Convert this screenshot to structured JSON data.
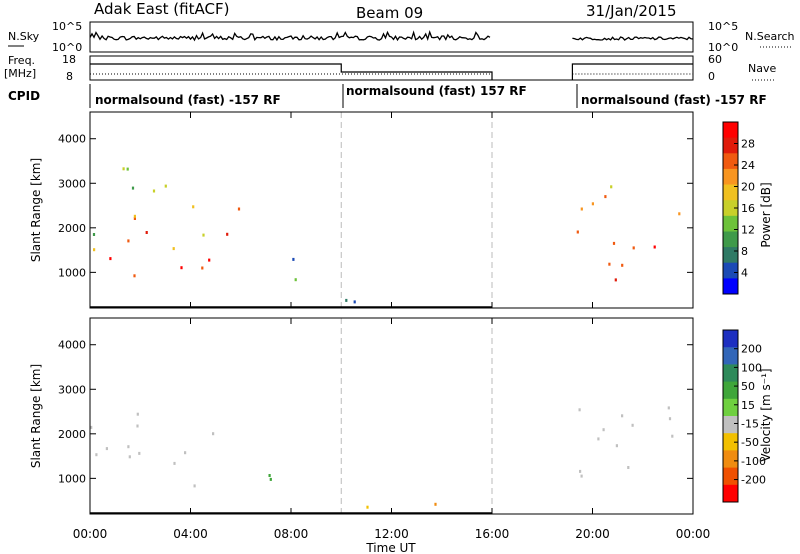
{
  "header": {
    "station": "Adak East (fitACF)",
    "beam": "Beam 09",
    "date": "31/Jan/2015"
  },
  "summary_panels": {
    "nsky_label": "N.Sky",
    "nsky_ticks": [
      "10^5",
      "10^0"
    ],
    "nsearch_label": "N.Search",
    "nsearch_ticks": [
      "10^5",
      "10^0"
    ],
    "freq_label_1": "Freq.",
    "freq_label_2": "[MHz]",
    "freq_ticks": [
      "18",
      "8"
    ],
    "nave_label": "Nave",
    "nave_ticks": [
      "60",
      "0"
    ],
    "cpid_label": "CPID",
    "cpid_segments": [
      {
        "label": "normalsound (fast) -157 RF",
        "start_hour": 0,
        "end_hour": 10
      },
      {
        "label": "normalsound (fast) 157 RF",
        "start_hour": 10,
        "end_hour": 20
      },
      {
        "label": "normalsound (fast) -157 RF",
        "start_hour": 20,
        "end_hour": 24
      }
    ],
    "data_gap_hours": [
      16,
      19.2
    ]
  },
  "chart_data": [
    {
      "type": "heatmap",
      "name": "power",
      "xlabel": "",
      "ylabel": "Slant Range [km]",
      "x_ticks": [
        "00:00",
        "04:00",
        "08:00",
        "12:00",
        "16:00",
        "20:00",
        "00:00"
      ],
      "y_ticks": [
        1000,
        2000,
        3000,
        4000
      ],
      "xlim_hours": [
        0,
        24
      ],
      "ylim": [
        200,
        4600
      ],
      "colorbar": {
        "label": "Power [dB]",
        "ticks": [
          "4",
          "8",
          "12",
          "16",
          "20",
          "24",
          "28"
        ],
        "colors": [
          "#0000ff",
          "#1b4ab5",
          "#2f7a65",
          "#3f9a4a",
          "#6dc23a",
          "#c8d02a",
          "#f0c020",
          "#f89520",
          "#f05a10",
          "#e01b0a",
          "#ff0000"
        ]
      },
      "regions": [
        {
          "t0": 0.0,
          "t1": 6.0,
          "r0": 850,
          "r1": 2600,
          "value": 22
        },
        {
          "t0": 0.0,
          "t1": 4.5,
          "r0": 1800,
          "r1": 3500,
          "value": 12
        },
        {
          "t0": 6.0,
          "t1": 8.8,
          "r0": 850,
          "r1": 1500,
          "value": 6
        },
        {
          "t0": 9.7,
          "t1": 16.0,
          "r0": 250,
          "r1": 500,
          "value": 5
        },
        {
          "t0": 19.2,
          "t1": 24.0,
          "r0": 850,
          "r1": 3100,
          "value": 20
        }
      ]
    },
    {
      "type": "heatmap",
      "name": "velocity",
      "xlabel": "Time UT",
      "ylabel": "Slant Range [km]",
      "x_ticks": [
        "00:00",
        "04:00",
        "08:00",
        "12:00",
        "16:00",
        "20:00",
        "00:00"
      ],
      "y_ticks": [
        1000,
        2000,
        3000,
        4000
      ],
      "xlim_hours": [
        0,
        24
      ],
      "ylim": [
        200,
        4600
      ],
      "colorbar": {
        "label": "Velocity [m s⁻¹]",
        "ticks": [
          "200",
          "100",
          "50",
          "15",
          "-15",
          "-50",
          "-100",
          "-200"
        ],
        "colors": [
          "#1d2fc0",
          "#3266b8",
          "#2e8a5a",
          "#3fa63a",
          "#6fd040",
          "#c0c0c0",
          "#f2c000",
          "#f08c10",
          "#f05000",
          "#ff0000"
        ]
      },
      "regions": [
        {
          "t0": 0.0,
          "t1": 6.0,
          "r0": 850,
          "r1": 2600,
          "value": 0
        },
        {
          "t0": 6.0,
          "t1": 8.8,
          "r0": 850,
          "r1": 1500,
          "value": 60
        },
        {
          "t0": 9.7,
          "t1": 16.0,
          "r0": 250,
          "r1": 500,
          "value": -40
        },
        {
          "t0": 19.2,
          "t1": 24.0,
          "r0": 850,
          "r1": 3100,
          "value": 0
        }
      ]
    }
  ]
}
